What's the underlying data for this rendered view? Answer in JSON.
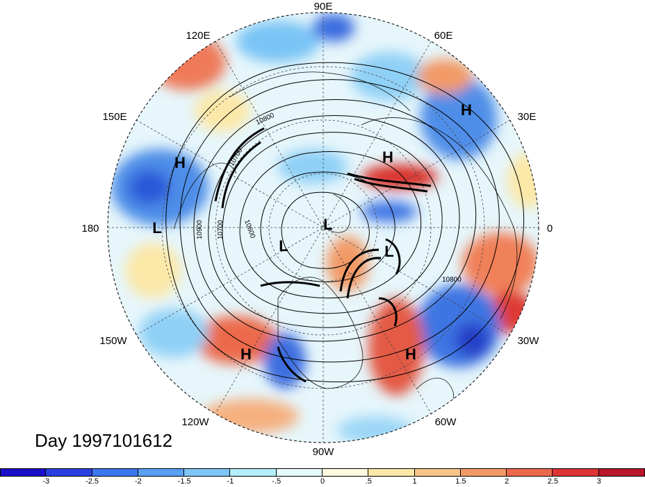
{
  "title": "Day 1997101612",
  "longitude_labels": {
    "lon_90e": "90E",
    "lon_60e": "60E",
    "lon_30e": "30E",
    "lon_0": "0",
    "lon_30w": "30W",
    "lon_60w": "60W",
    "lon_90w": "90W",
    "lon_120w": "120W",
    "lon_150w": "150W",
    "lon_180": "180",
    "lon_150e": "150E",
    "lon_120e": "120E"
  },
  "pressure_centers": [
    {
      "label": "H"
    },
    {
      "label": "H"
    },
    {
      "label": "H"
    },
    {
      "label": "H"
    },
    {
      "label": "H"
    },
    {
      "label": "L"
    },
    {
      "label": "L"
    },
    {
      "label": "L"
    },
    {
      "label": "L"
    }
  ],
  "contour_labels": [
    "10800",
    "10800",
    "10700",
    "10900",
    "10700",
    "10600"
  ],
  "colorbar": {
    "colors": [
      "#1a0fc8",
      "#2a3ee0",
      "#3c78ee",
      "#5aa0f3",
      "#7ec6f8",
      "#b4eefb",
      "#e6fbfe",
      "#fffbe0",
      "#fce8a8",
      "#f8c488",
      "#f29a66",
      "#ec6a4c",
      "#dd3434",
      "#b8182a"
    ],
    "ticks": [
      "-3",
      "-2.5",
      "-2",
      "-1.5",
      "-1",
      "-.5",
      "0",
      ".5",
      "1",
      "1.5",
      "2",
      "2.5",
      "3"
    ]
  }
}
